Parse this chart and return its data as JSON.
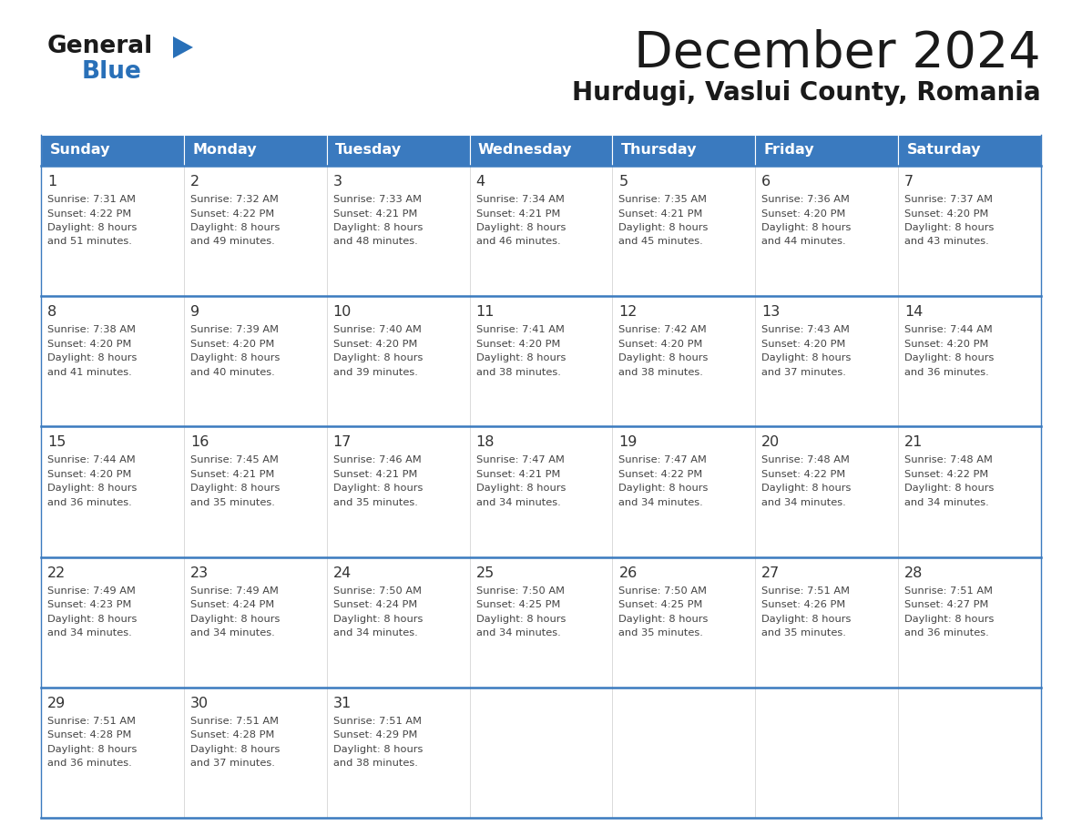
{
  "title": "December 2024",
  "subtitle": "Hurdugi, Vaslui County, Romania",
  "header_bg": "#3a7abf",
  "header_text": "#ffffff",
  "cell_bg": "#ffffff",
  "border_color": "#3a7abf",
  "grid_line_color": "#cccccc",
  "day_headers": [
    "Sunday",
    "Monday",
    "Tuesday",
    "Wednesday",
    "Thursday",
    "Friday",
    "Saturday"
  ],
  "days": [
    {
      "day": 1,
      "col": 0,
      "row": 0,
      "sunrise": "7:31 AM",
      "sunset": "4:22 PM",
      "daylight_min": 51
    },
    {
      "day": 2,
      "col": 1,
      "row": 0,
      "sunrise": "7:32 AM",
      "sunset": "4:22 PM",
      "daylight_min": 49
    },
    {
      "day": 3,
      "col": 2,
      "row": 0,
      "sunrise": "7:33 AM",
      "sunset": "4:21 PM",
      "daylight_min": 48
    },
    {
      "day": 4,
      "col": 3,
      "row": 0,
      "sunrise": "7:34 AM",
      "sunset": "4:21 PM",
      "daylight_min": 46
    },
    {
      "day": 5,
      "col": 4,
      "row": 0,
      "sunrise": "7:35 AM",
      "sunset": "4:21 PM",
      "daylight_min": 45
    },
    {
      "day": 6,
      "col": 5,
      "row": 0,
      "sunrise": "7:36 AM",
      "sunset": "4:20 PM",
      "daylight_min": 44
    },
    {
      "day": 7,
      "col": 6,
      "row": 0,
      "sunrise": "7:37 AM",
      "sunset": "4:20 PM",
      "daylight_min": 43
    },
    {
      "day": 8,
      "col": 0,
      "row": 1,
      "sunrise": "7:38 AM",
      "sunset": "4:20 PM",
      "daylight_min": 41
    },
    {
      "day": 9,
      "col": 1,
      "row": 1,
      "sunrise": "7:39 AM",
      "sunset": "4:20 PM",
      "daylight_min": 40
    },
    {
      "day": 10,
      "col": 2,
      "row": 1,
      "sunrise": "7:40 AM",
      "sunset": "4:20 PM",
      "daylight_min": 39
    },
    {
      "day": 11,
      "col": 3,
      "row": 1,
      "sunrise": "7:41 AM",
      "sunset": "4:20 PM",
      "daylight_min": 38
    },
    {
      "day": 12,
      "col": 4,
      "row": 1,
      "sunrise": "7:42 AM",
      "sunset": "4:20 PM",
      "daylight_min": 38
    },
    {
      "day": 13,
      "col": 5,
      "row": 1,
      "sunrise": "7:43 AM",
      "sunset": "4:20 PM",
      "daylight_min": 37
    },
    {
      "day": 14,
      "col": 6,
      "row": 1,
      "sunrise": "7:44 AM",
      "sunset": "4:20 PM",
      "daylight_min": 36
    },
    {
      "day": 15,
      "col": 0,
      "row": 2,
      "sunrise": "7:44 AM",
      "sunset": "4:20 PM",
      "daylight_min": 36
    },
    {
      "day": 16,
      "col": 1,
      "row": 2,
      "sunrise": "7:45 AM",
      "sunset": "4:21 PM",
      "daylight_min": 35
    },
    {
      "day": 17,
      "col": 2,
      "row": 2,
      "sunrise": "7:46 AM",
      "sunset": "4:21 PM",
      "daylight_min": 35
    },
    {
      "day": 18,
      "col": 3,
      "row": 2,
      "sunrise": "7:47 AM",
      "sunset": "4:21 PM",
      "daylight_min": 34
    },
    {
      "day": 19,
      "col": 4,
      "row": 2,
      "sunrise": "7:47 AM",
      "sunset": "4:22 PM",
      "daylight_min": 34
    },
    {
      "day": 20,
      "col": 5,
      "row": 2,
      "sunrise": "7:48 AM",
      "sunset": "4:22 PM",
      "daylight_min": 34
    },
    {
      "day": 21,
      "col": 6,
      "row": 2,
      "sunrise": "7:48 AM",
      "sunset": "4:22 PM",
      "daylight_min": 34
    },
    {
      "day": 22,
      "col": 0,
      "row": 3,
      "sunrise": "7:49 AM",
      "sunset": "4:23 PM",
      "daylight_min": 34
    },
    {
      "day": 23,
      "col": 1,
      "row": 3,
      "sunrise": "7:49 AM",
      "sunset": "4:24 PM",
      "daylight_min": 34
    },
    {
      "day": 24,
      "col": 2,
      "row": 3,
      "sunrise": "7:50 AM",
      "sunset": "4:24 PM",
      "daylight_min": 34
    },
    {
      "day": 25,
      "col": 3,
      "row": 3,
      "sunrise": "7:50 AM",
      "sunset": "4:25 PM",
      "daylight_min": 34
    },
    {
      "day": 26,
      "col": 4,
      "row": 3,
      "sunrise": "7:50 AM",
      "sunset": "4:25 PM",
      "daylight_min": 35
    },
    {
      "day": 27,
      "col": 5,
      "row": 3,
      "sunrise": "7:51 AM",
      "sunset": "4:26 PM",
      "daylight_min": 35
    },
    {
      "day": 28,
      "col": 6,
      "row": 3,
      "sunrise": "7:51 AM",
      "sunset": "4:27 PM",
      "daylight_min": 36
    },
    {
      "day": 29,
      "col": 0,
      "row": 4,
      "sunrise": "7:51 AM",
      "sunset": "4:28 PM",
      "daylight_min": 36
    },
    {
      "day": 30,
      "col": 1,
      "row": 4,
      "sunrise": "7:51 AM",
      "sunset": "4:28 PM",
      "daylight_min": 37
    },
    {
      "day": 31,
      "col": 2,
      "row": 4,
      "sunrise": "7:51 AM",
      "sunset": "4:29 PM",
      "daylight_min": 38
    }
  ],
  "logo_color_general": "#1a1a1a",
  "logo_color_blue": "#2970b8",
  "logo_triangle_color": "#2970b8",
  "title_color": "#1a1a1a",
  "subtitle_color": "#1a1a1a",
  "text_color": "#444444",
  "day_num_color": "#333333"
}
